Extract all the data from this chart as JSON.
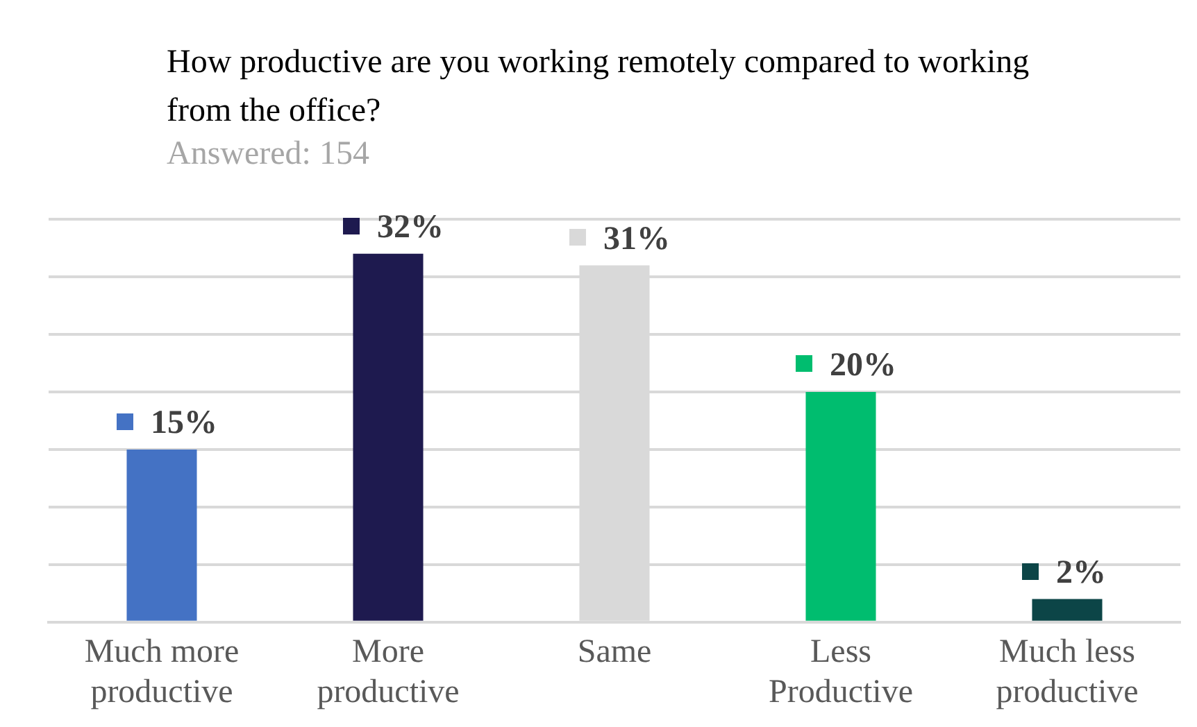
{
  "chart_data": {
    "type": "bar",
    "title": "How productive are you working remotely compared to working from the office?",
    "subtitle": "Answered: 154",
    "categories": [
      "Much more productive",
      "More productive",
      "Same",
      "Less Productive",
      "Much less productive"
    ],
    "values": [
      15,
      32,
      31,
      20,
      2
    ],
    "colors": [
      "#4472c4",
      "#1e1a4f",
      "#d9d9d9",
      "#00bd6f",
      "#0c4547"
    ],
    "value_labels": [
      "15%",
      "32%",
      "31%",
      "20%",
      "2%"
    ],
    "ylim": [
      0,
      35
    ],
    "yticks": [
      {
        "value": 0,
        "label": null
      },
      {
        "value": 5,
        "label": null
      },
      {
        "value": 10,
        "label": null
      },
      {
        "value": 15,
        "label": null
      },
      {
        "value": 20,
        "label": null
      },
      {
        "value": 25,
        "label": null
      },
      {
        "value": 30,
        "label": null
      },
      {
        "value": 35,
        "label": null
      }
    ],
    "grid": "y",
    "tick_labels": "x"
  }
}
